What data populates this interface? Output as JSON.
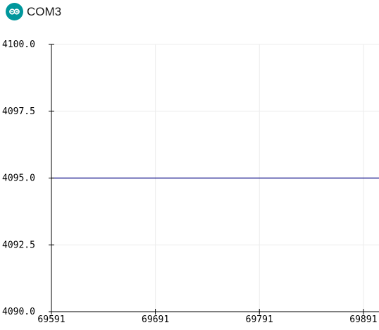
{
  "window": {
    "title": "COM3",
    "icon": "arduino-logo-icon",
    "icon_color": "#00979c"
  },
  "chart_data": {
    "type": "line",
    "title": "",
    "xlabel": "",
    "ylabel": "",
    "xlim": [
      69591,
      69906
    ],
    "ylim": [
      4090.0,
      4100.0
    ],
    "x_ticks": [
      "69591",
      "69691",
      "69791",
      "69891"
    ],
    "y_ticks": [
      "4100.0",
      "4097.5",
      "4095.0",
      "4092.5",
      "4090.0"
    ],
    "grid": true,
    "series": [
      {
        "color": "#000080",
        "x": [
          69591,
          69906
        ],
        "values": [
          4095.0,
          4095.0
        ]
      }
    ]
  }
}
